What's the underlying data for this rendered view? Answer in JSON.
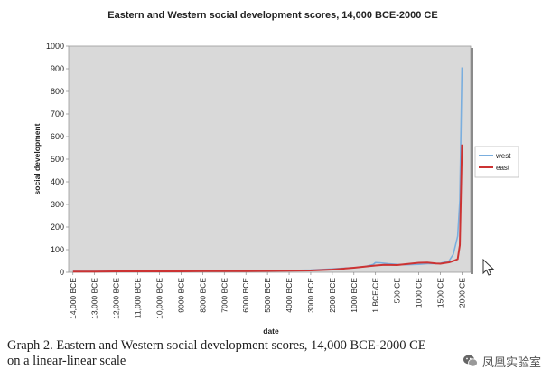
{
  "chart_data": {
    "type": "line",
    "title": "Eastern and Western social development scores, 14,000 BCE-2000 CE",
    "xlabel": "date",
    "ylabel": "social development",
    "ylim": [
      0,
      1000
    ],
    "yticks": [
      "0",
      "100",
      "200",
      "300",
      "400",
      "500",
      "600",
      "700",
      "800",
      "900",
      "1000"
    ],
    "x_categories": [
      "14,000 BCE",
      "13,000 BCE",
      "12,000 BCE",
      "11,000 BCE",
      "10,000 BCE",
      "9000 BCE",
      "8000 BCE",
      "7000 BCE",
      "6000 BCE",
      "5000 BCE",
      "4000 BCE",
      "3000 BCE",
      "2000 BCE",
      "1000 BCE",
      "1 BCE/CE",
      "500 CE",
      "1000 CE",
      "1500 CE",
      "2000 CE"
    ],
    "x_years": [
      -14000,
      -13000,
      -12000,
      -11000,
      -10000,
      -9000,
      -8000,
      -7000,
      -6000,
      -5000,
      -4000,
      -3000,
      -2000,
      -1000,
      0,
      500,
      1000,
      1500,
      2000
    ],
    "grid": false,
    "legend_position": "right",
    "series": [
      {
        "name": "west",
        "color": "#7aaede",
        "points": [
          [
            -14000,
            4
          ],
          [
            -13000,
            4
          ],
          [
            -12000,
            5
          ],
          [
            -11000,
            5
          ],
          [
            -10000,
            5
          ],
          [
            -9000,
            5
          ],
          [
            -8000,
            6
          ],
          [
            -7000,
            6
          ],
          [
            -6000,
            6
          ],
          [
            -5000,
            7
          ],
          [
            -4000,
            8
          ],
          [
            -3000,
            10
          ],
          [
            -2000,
            15
          ],
          [
            -1500,
            18
          ],
          [
            -1000,
            20
          ],
          [
            -500,
            25
          ],
          [
            -100,
            35
          ],
          [
            0,
            43
          ],
          [
            100,
            42
          ],
          [
            300,
            38
          ],
          [
            500,
            35
          ],
          [
            700,
            33
          ],
          [
            1000,
            35
          ],
          [
            1200,
            38
          ],
          [
            1400,
            38
          ],
          [
            1500,
            40
          ],
          [
            1600,
            45
          ],
          [
            1700,
            50
          ],
          [
            1800,
            80
          ],
          [
            1900,
            160
          ],
          [
            1950,
            320
          ],
          [
            2000,
            906
          ]
        ]
      },
      {
        "name": "east",
        "color": "#cc3333",
        "points": [
          [
            -14000,
            3
          ],
          [
            -13000,
            3
          ],
          [
            -12000,
            4
          ],
          [
            -11000,
            4
          ],
          [
            -10000,
            4
          ],
          [
            -9000,
            4
          ],
          [
            -8000,
            5
          ],
          [
            -7000,
            5
          ],
          [
            -6000,
            5
          ],
          [
            -5000,
            6
          ],
          [
            -4000,
            7
          ],
          [
            -3000,
            8
          ],
          [
            -2000,
            12
          ],
          [
            -1000,
            20
          ],
          [
            -500,
            25
          ],
          [
            0,
            30
          ],
          [
            200,
            33
          ],
          [
            500,
            32
          ],
          [
            700,
            36
          ],
          [
            1000,
            42
          ],
          [
            1200,
            43
          ],
          [
            1400,
            39
          ],
          [
            1500,
            38
          ],
          [
            1600,
            41
          ],
          [
            1700,
            44
          ],
          [
            1800,
            50
          ],
          [
            1900,
            58
          ],
          [
            1950,
            120
          ],
          [
            2000,
            565
          ]
        ]
      }
    ]
  },
  "caption": {
    "line1": "Graph 2.  Eastern and Western social development scores, 14,000 BCE-2000 CE",
    "line2": "on a linear-linear scale"
  },
  "watermark": {
    "text": "凤凰实验室"
  }
}
